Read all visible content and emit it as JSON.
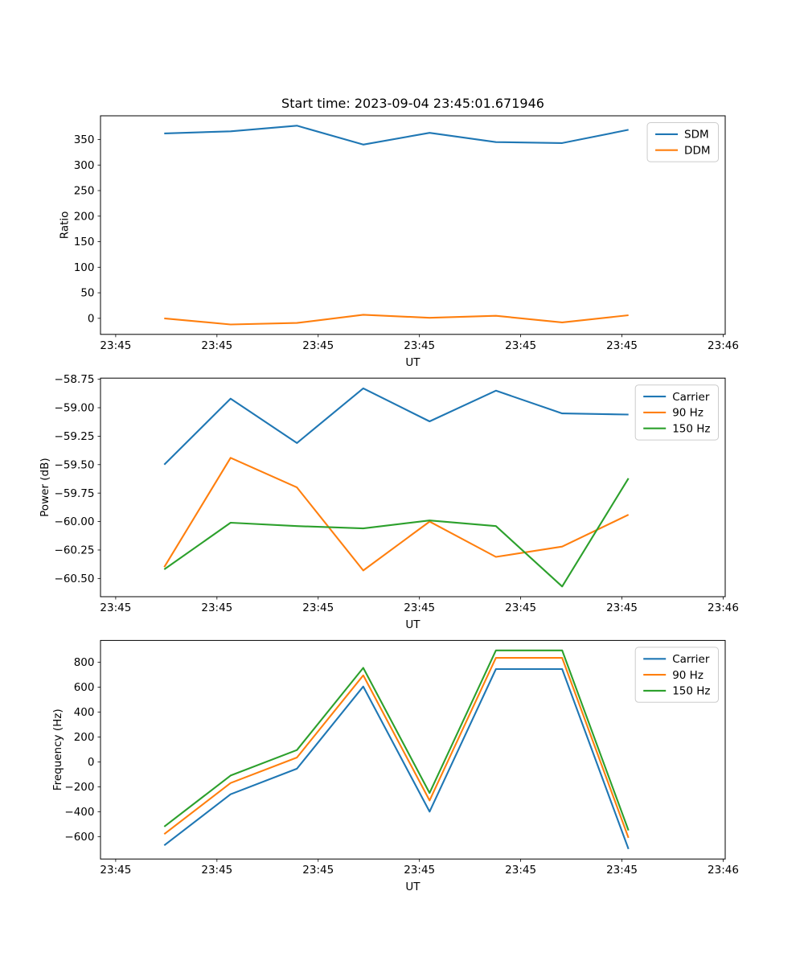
{
  "figure": {
    "title": "Start time: 2023-09-04 23:45:01.671946",
    "background_color": "#ffffff",
    "text_color": "#000000",
    "palette": {
      "blue": "#1f77b4",
      "orange": "#ff7f0e",
      "green": "#2ca02c"
    }
  },
  "chart_data": [
    {
      "type": "line",
      "title": "Start time: 2023-09-04 23:45:01.671946",
      "xlabel": "UT",
      "ylabel": "Ratio",
      "grid": false,
      "legend_location": "upper right",
      "x_seconds_after_234500": [
        4.8,
        11.35,
        17.9,
        24.45,
        31.0,
        37.55,
        44.1,
        50.65
      ],
      "xlim_seconds": [
        -1.5,
        60.2
      ],
      "x_ticks": {
        "seconds": [
          0,
          10,
          20,
          30,
          40,
          50,
          60
        ],
        "labels": [
          "23:45",
          "23:45",
          "23:45",
          "23:45",
          "23:45",
          "23:45",
          "23:46"
        ]
      },
      "ylim": [
        -31.4,
        396.4
      ],
      "y_ticks": {
        "values": [
          350,
          300,
          250,
          200,
          150,
          100,
          50,
          0
        ],
        "labels": [
          "350",
          "300",
          "250",
          "200",
          "150",
          "100",
          "50",
          "0"
        ]
      },
      "series": [
        {
          "name": "SDM",
          "color": "#1f77b4",
          "values": [
            362,
            366,
            377,
            340,
            363,
            345,
            343,
            369
          ]
        },
        {
          "name": "DDM",
          "color": "#ff7f0e",
          "values": [
            0,
            -12,
            -9,
            7,
            1,
            5,
            -8,
            6
          ]
        }
      ]
    },
    {
      "type": "line",
      "title": "",
      "xlabel": "UT",
      "ylabel": "Power (dB)",
      "grid": false,
      "legend_location": "upper right",
      "x_seconds_after_234500": [
        4.8,
        11.35,
        17.9,
        24.45,
        31.0,
        37.55,
        44.1,
        50.65
      ],
      "xlim_seconds": [
        -1.5,
        60.2
      ],
      "x_ticks": {
        "seconds": [
          0,
          10,
          20,
          30,
          40,
          50,
          60
        ],
        "labels": [
          "23:45",
          "23:45",
          "23:45",
          "23:45",
          "23:45",
          "23:45",
          "23:46"
        ]
      },
      "ylim": [
        -60.66,
        -58.74
      ],
      "y_ticks": {
        "values": [
          -58.75,
          -59.0,
          -59.25,
          -59.5,
          -59.75,
          -60.0,
          -60.25,
          -60.5
        ],
        "labels": [
          "−58.75",
          "−59.00",
          "−59.25",
          "−59.50",
          "−59.75",
          "−60.00",
          "−60.25",
          "−60.50"
        ]
      },
      "series": [
        {
          "name": "Carrier",
          "color": "#1f77b4",
          "values": [
            -59.5,
            -58.92,
            -59.31,
            -58.83,
            -59.12,
            -58.85,
            -59.05,
            -59.06
          ]
        },
        {
          "name": "90 Hz",
          "color": "#ff7f0e",
          "values": [
            -60.4,
            -59.44,
            -59.7,
            -60.43,
            -60.0,
            -60.31,
            -60.22,
            -59.94
          ]
        },
        {
          "name": "150 Hz",
          "color": "#2ca02c",
          "values": [
            -60.42,
            -60.01,
            -60.04,
            -60.06,
            -59.99,
            -60.04,
            -60.57,
            -59.62
          ]
        }
      ]
    },
    {
      "type": "line",
      "title": "",
      "xlabel": "UT",
      "ylabel": "Frequency (Hz)",
      "grid": false,
      "legend_location": "upper right",
      "x_seconds_after_234500": [
        4.8,
        11.35,
        17.9,
        24.45,
        31.0,
        37.55,
        44.1,
        50.65
      ],
      "xlim_seconds": [
        -1.5,
        60.2
      ],
      "x_ticks": {
        "seconds": [
          0,
          10,
          20,
          30,
          40,
          50,
          60
        ],
        "labels": [
          "23:45",
          "23:45",
          "23:45",
          "23:45",
          "23:45",
          "23:45",
          "23:46"
        ]
      },
      "ylim": [
        -780,
        975
      ],
      "y_ticks": {
        "values": [
          800,
          600,
          400,
          200,
          0,
          -200,
          -400,
          -600
        ],
        "labels": [
          "800",
          "600",
          "400",
          "200",
          "0",
          "−200",
          "−400",
          "−600"
        ]
      },
      "series": [
        {
          "name": "Carrier",
          "color": "#1f77b4",
          "values": [
            -670,
            -260,
            -55,
            605,
            -400,
            745,
            745,
            -700
          ]
        },
        {
          "name": "90 Hz",
          "color": "#ff7f0e",
          "values": [
            -580,
            -170,
            35,
            695,
            -310,
            835,
            835,
            -610
          ]
        },
        {
          "name": "150 Hz",
          "color": "#2ca02c",
          "values": [
            -520,
            -110,
            95,
            755,
            -250,
            895,
            895,
            -550
          ]
        }
      ]
    }
  ]
}
